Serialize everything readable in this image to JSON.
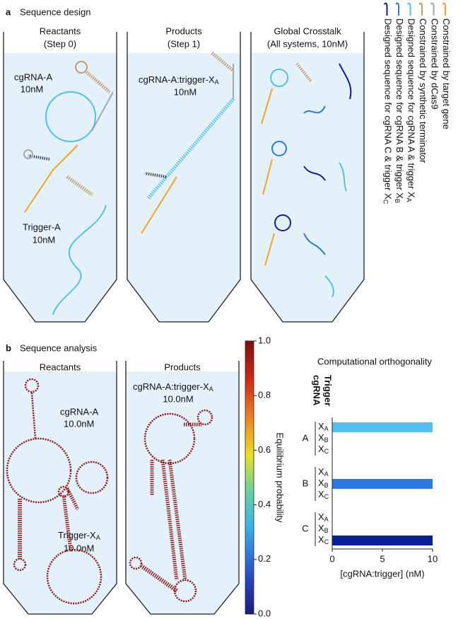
{
  "panel_a": {
    "letter": "a",
    "title": "Sequence design",
    "tubes": [
      {
        "title": "Reactants",
        "subtitle": "(Step 0)",
        "labels": [
          {
            "name": "cgRNA-A",
            "conc": "10nM"
          },
          {
            "name": "Trigger-A",
            "conc": "10nM"
          }
        ]
      },
      {
        "title": "Products",
        "subtitle": "(Step 1)",
        "labels": [
          {
            "name": "cgRNA-A:trigger-X",
            "sub": "A",
            "conc": "10nM"
          }
        ]
      },
      {
        "title": "Global Crosstalk",
        "subtitle": "(All systems, 10nM)"
      }
    ],
    "legend": [
      {
        "text": "Constrained by target gene",
        "color": "#f2a22c"
      },
      {
        "text": "Constrained by dCas9",
        "color": "#a8a8a8"
      },
      {
        "text": "Constrained by synthetic terminator",
        "color": "#c49a6c"
      },
      {
        "text": "Designed sequence for cgRNA A & trigger X",
        "sub": "A",
        "color": "#52c0ec"
      },
      {
        "text": "Designed sequence for cgRNA B & trigger X",
        "sub": "B",
        "color": "#2c78e0"
      },
      {
        "text": "Designed sequence for cgRNA C & trigger X",
        "sub": "C",
        "color": "#0c1f96"
      }
    ]
  },
  "panel_b": {
    "letter": "b",
    "title": "Sequence analysis",
    "tubes": [
      {
        "title": "Reactants",
        "labels": [
          {
            "name": "cgRNA-A",
            "conc": "10.0nM"
          },
          {
            "name": "Trigger-X",
            "sub": "A",
            "conc": "10.0nM"
          }
        ]
      },
      {
        "title": "Products",
        "labels": [
          {
            "name": "cgRNA-A:trigger-X",
            "sub": "A",
            "conc": "10.0nM"
          }
        ]
      }
    ],
    "colorbar": {
      "label": "Equilibrium probability",
      "lim": [
        0,
        1
      ],
      "ticks": [
        {
          "value": 0,
          "label": "0.0"
        },
        0.2,
        0.4,
        0.6,
        0.8,
        {
          "value": 1,
          "label": "1.0"
        }
      ]
    }
  },
  "chart_data": {
    "type": "bar",
    "orientation": "horizontal",
    "title": "Computational orthogonality",
    "row_header": "cgRNA",
    "column_header": "Trigger",
    "xlabel": "[cgRNA:trigger] (nM)",
    "groups": [
      "A",
      "B",
      "C"
    ],
    "colors": [
      "#52c0ec",
      "#2c78e0",
      "#0c1f96"
    ],
    "triggers": [
      {
        "text": "X",
        "sub": "A"
      },
      {
        "text": "X",
        "sub": "B"
      },
      {
        "text": "X",
        "sub": "C"
      }
    ],
    "values": [
      [
        10,
        0,
        0
      ],
      [
        0,
        10,
        0
      ],
      [
        0,
        0,
        10
      ]
    ],
    "xlim": [
      0,
      10
    ],
    "xticks": [
      0,
      5,
      10
    ]
  }
}
